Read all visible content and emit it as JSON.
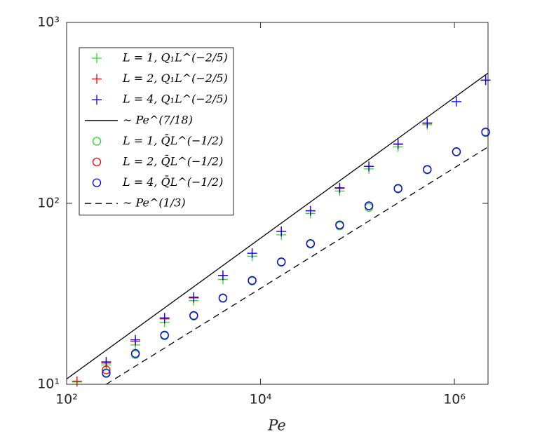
{
  "chart_data": {
    "type": "scatter",
    "xlabel": "Pe",
    "log_x": true,
    "log_y": true,
    "xlim": [
      100,
      2220000
    ],
    "ylim": [
      10,
      1000
    ],
    "xticks": [
      {
        "value": 100,
        "label": "10²"
      },
      {
        "value": 10000,
        "label": "10⁴"
      },
      {
        "value": 1000000,
        "label": "10⁶"
      }
    ],
    "yticks": [
      {
        "value": 10,
        "label": "10¹"
      },
      {
        "value": 100,
        "label": "10²"
      },
      {
        "value": 1000,
        "label": "10³"
      }
    ],
    "legend": "top-left",
    "x": [
      128,
      256,
      512,
      1024,
      2048,
      4096,
      8192,
      16384,
      32768,
      65536,
      131072,
      262144,
      524288,
      1048576,
      2097152
    ],
    "series": [
      {
        "name": "L = 1, Q₁L^(−2/5)",
        "color": "#22dd22",
        "marker": "+",
        "values": [
          10.3,
          12.8,
          16.5,
          22,
          29,
          38,
          51,
          67,
          88,
          117,
          155,
          205,
          272,
          null,
          null
        ]
      },
      {
        "name": "L = 2, Q₁L^(−2/5)",
        "color": "#ff0000",
        "marker": "+",
        "values": [
          10.4,
          13.1,
          17.3,
          23,
          30,
          40,
          53,
          70,
          91,
          121,
          160,
          212,
          277,
          null,
          480
        ]
      },
      {
        "name": "L = 4, Q₁L^(−2/5)",
        "color": "#0000ff",
        "marker": "+",
        "values": [
          null,
          13.3,
          17.6,
          23.3,
          30.3,
          40,
          53,
          70,
          91,
          122,
          160,
          213,
          278,
          365,
          480
        ]
      },
      {
        "name": "∼ Pe^(7/18)",
        "color": "#000000",
        "marker": "solid",
        "x": [
          100,
          2220000
        ],
        "values": [
          10.7,
          525
        ]
      },
      {
        "name": "L = 1, Q̄L^(−1/2)",
        "color": "#22dd22",
        "marker": "o",
        "values": [
          null,
          11.6,
          14.6,
          18.5,
          23.8,
          29.8,
          37.2,
          47.2,
          59.5,
          75,
          95,
          120,
          153,
          192,
          246
        ]
      },
      {
        "name": "L = 2, Q̄L^(−1/2)",
        "color": "#ff0000",
        "marker": "o",
        "values": [
          null,
          12,
          14.8,
          18.7,
          24,
          30,
          37.5,
          47.5,
          60,
          76,
          97,
          121,
          154,
          193,
          248
        ]
      },
      {
        "name": "L = 4, Q̄L^(−1/2)",
        "color": "#0000ff",
        "marker": "o",
        "values": [
          null,
          11.5,
          14.8,
          18.7,
          24,
          30,
          37.5,
          47.5,
          60,
          76,
          97,
          121,
          154,
          193,
          248
        ]
      },
      {
        "name": "∼ Pe^(1/3)",
        "color": "#000000",
        "marker": "dashed",
        "x": [
          256,
          2220000
        ],
        "values": [
          10,
          205
        ]
      }
    ]
  }
}
